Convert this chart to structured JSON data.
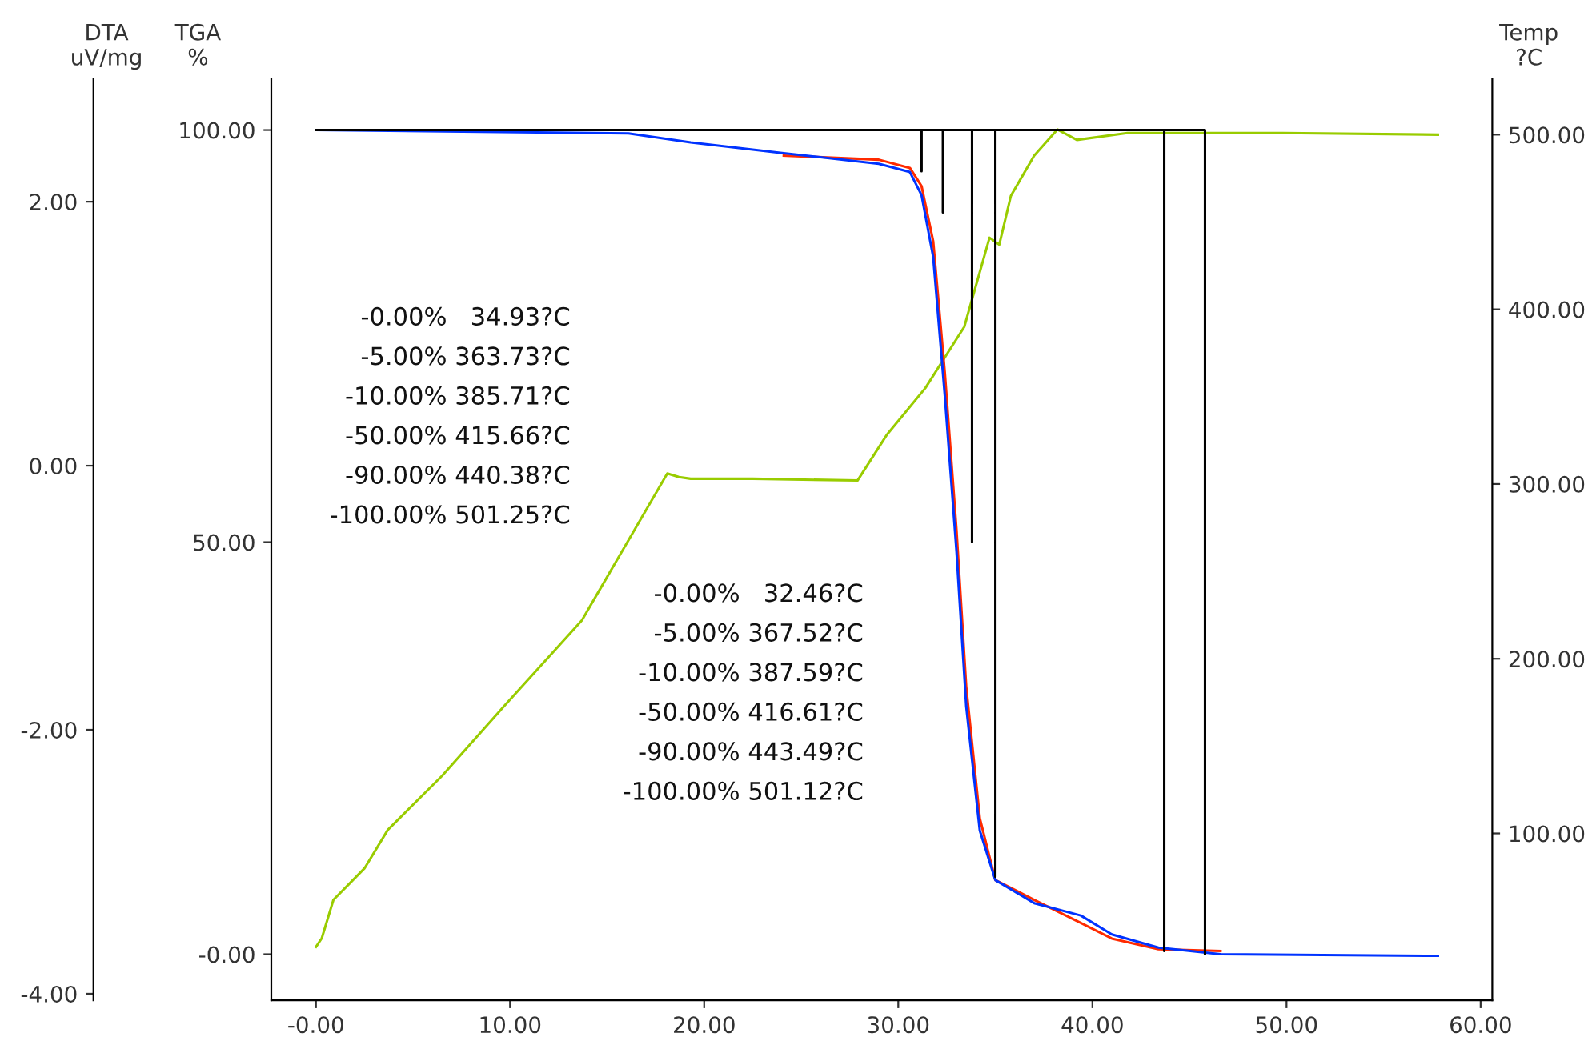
{
  "chart_data": {
    "type": "line",
    "xlim": [
      -2.3,
      60.6
    ],
    "xticks": [
      {
        "value": 0,
        "label": "-0.00"
      },
      {
        "value": 10,
        "label": "10.00"
      },
      {
        "value": 20,
        "label": "20.00"
      },
      {
        "value": 30,
        "label": "30.00"
      },
      {
        "value": 40,
        "label": "40.00"
      },
      {
        "value": 50,
        "label": "50.00"
      },
      {
        "value": 60,
        "label": "60.00"
      }
    ],
    "ylabel": "TGA\n%",
    "ylim": [
      -5.6,
      106.2
    ],
    "yticks": [
      {
        "value": 0,
        "label": "-0.00"
      },
      {
        "value": 50,
        "label": "50.00"
      },
      {
        "value": 100,
        "label": "100.00"
      }
    ],
    "y2label": "Temp\n?C",
    "y2lim": [
      4.4,
      531.9
    ],
    "y2ticks": [
      {
        "value": 100,
        "label": "100.00"
      },
      {
        "value": 200,
        "label": "200.00"
      },
      {
        "value": 300,
        "label": "300.00"
      },
      {
        "value": 400,
        "label": "400.00"
      },
      {
        "value": 500,
        "label": "500.00"
      }
    ],
    "y3label": "DTA\nuV/mg",
    "y3lim": [
      -4.05,
      2.93
    ],
    "y3ticks": [
      {
        "value": -4,
        "label": "-4.00"
      },
      {
        "value": -2,
        "label": "-2.00"
      },
      {
        "value": 0,
        "label": "0.00"
      },
      {
        "value": 2,
        "label": "2.00"
      }
    ],
    "grid": false,
    "marker": "none",
    "line_style": "solid",
    "series": [
      {
        "color": "#99cc00",
        "axis": "y2",
        "x": [
          0,
          0.3,
          0.9,
          1.7,
          2.5,
          3.7,
          6.5,
          9.7,
          13.7,
          18.1,
          18.7,
          19.3,
          22.5,
          27.9,
          29.4,
          31.4,
          33.4,
          34.7,
          35.2,
          35.8,
          37.0,
          38.2,
          39.2,
          41.8,
          45.8,
          49.8,
          57.8
        ],
        "values": [
          35,
          40,
          62,
          71,
          80,
          102,
          133,
          173,
          222,
          306,
          304,
          303,
          303,
          302,
          328,
          355,
          390,
          441,
          437,
          465,
          488,
          503,
          497,
          501,
          501,
          501,
          500
        ]
      },
      {
        "color": "#ff2a00",
        "x": [
          24.1,
          29.0,
          30.6,
          31.2,
          31.8,
          32.4,
          33.0,
          33.5,
          34.2,
          35.0,
          37.0,
          39.4,
          41.0,
          43.4,
          46.6
        ],
        "values": [
          96.9,
          96.4,
          95.4,
          93.2,
          86.5,
          70.5,
          51.5,
          32.5,
          16.5,
          9.0,
          6.6,
          3.8,
          1.9,
          0.6,
          0.4
        ]
      },
      {
        "color": "#0033ff",
        "x": [
          0,
          16.1,
          19.3,
          24.1,
          29.0,
          30.6,
          31.2,
          31.8,
          32.4,
          33.0,
          33.5,
          34.2,
          35.0,
          37.0,
          39.4,
          41.0,
          43.4,
          46.6,
          57.8
        ],
        "values": [
          100,
          99.6,
          98.5,
          97.2,
          95.9,
          94.9,
          92.1,
          84.6,
          67.7,
          48.9,
          30.1,
          15.0,
          9.0,
          6.2,
          4.7,
          2.4,
          0.8,
          0,
          -0.2
        ]
      },
      {
        "color": "#000000",
        "x": [
          0,
          31.2,
          31.2,
          31.2,
          32.3,
          32.3,
          32.3,
          33.8,
          33.8,
          33.8,
          35.0,
          35.0,
          35.0,
          43.7,
          43.7,
          43.7,
          45.8,
          45.8
        ],
        "values": [
          100,
          100,
          95,
          100,
          100,
          90,
          100,
          100,
          50,
          100,
          100,
          9.4,
          100,
          100,
          0.4,
          100,
          100,
          0
        ]
      }
    ],
    "annotations": [
      "-0.00%   34.93?C",
      "-5.00% 363.73?C",
      "-10.00% 385.71?C",
      "-50.00% 415.66?C",
      "-90.00% 440.38?C",
      "-100.00% 501.25?C",
      "-0.00%   32.46?C",
      "-5.00% 367.52?C",
      "-10.00% 387.59?C",
      "-50.00% 416.61?C",
      "-90.00% 443.49?C",
      "-100.00% 501.12?C"
    ]
  }
}
